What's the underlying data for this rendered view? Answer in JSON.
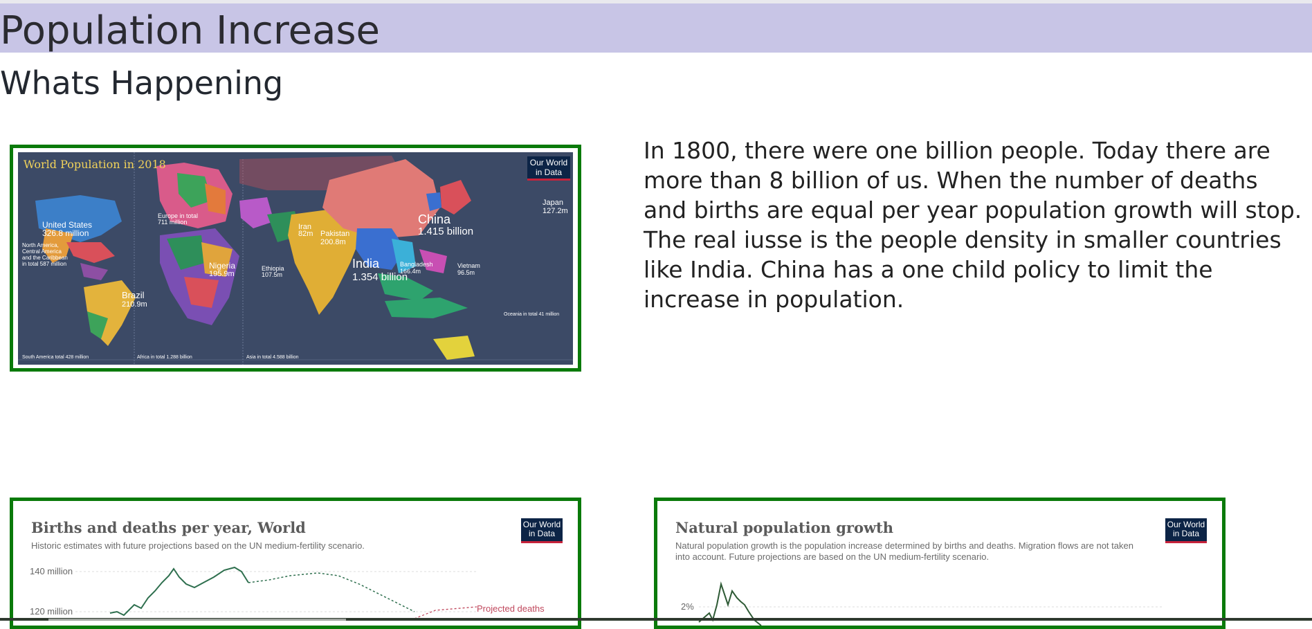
{
  "header": {
    "title": "Population Increase"
  },
  "section": {
    "title": "Whats Happening"
  },
  "intro": {
    "text": "In 1800, there were one billion people. Today there are more than 8 billion of us. When the number of deaths and births are equal per year population growth will stop. The real iusse is the people density in smaller countries like India. China has a one child policy to limit the increase in population."
  },
  "map": {
    "title": "World Population in 2018",
    "logo": "Our World in Data",
    "labels": {
      "china": "China",
      "china_pop": "1.415 billion",
      "india": "India",
      "india_pop": "1.354 billion",
      "us": "United States",
      "us_pop": "326.8 million",
      "brazil": "Brazil",
      "brazil_pop": "210.9m",
      "nigeria": "Nigeria",
      "nigeria_pop": "195.9m",
      "pakistan": "Pakistan",
      "pakistan_pop": "200.8m",
      "japan": "Japan",
      "japan_pop": "127.2m",
      "iran": "Iran",
      "iran_pop": "82m",
      "ethiopia": "Ethiopia",
      "ethiopia_pop": "107.5m",
      "bangladesh": "Bangladesh",
      "bangladesh_pop": "166.4m",
      "vietnam": "Vietnam",
      "vietnam_pop": "96.5m",
      "europe": "Europe in total",
      "europe_pop": "711 million",
      "north_america": "North America,\nCentral America\nand the Caribbean\nin total 587 million",
      "south_america_total": "South America total 428 million",
      "africa_total": "Africa in total 1.288 billion",
      "asia_total": "Asia in total 4.588 billion",
      "oceania_total": "Oceania in total 41 million"
    }
  },
  "charts": {
    "left": {
      "title": "Births and deaths per year, World",
      "subtitle": "Historic estimates with future projections based on the UN medium-fertility scenario.",
      "logo": "Our World in Data",
      "tick_140": "140 million",
      "tick_120": "120 million",
      "projected_label": "Projected deaths",
      "line_color": "#2e6f4e",
      "proj_color": "#c0485d"
    },
    "right": {
      "title": "Natural population growth",
      "subtitle": "Natural population growth is the population increase determined by births and deaths. Migration flows are not taken into account. Future projections are based on the UN medium-fertility scenario.",
      "logo": "Our World in Data",
      "tick_2": "2%",
      "line_color": "#2e5a35"
    }
  },
  "colors": {
    "frame": "#0a7a0a",
    "title_band": "#c8c5e6",
    "map_bg": "#3c4a66"
  }
}
